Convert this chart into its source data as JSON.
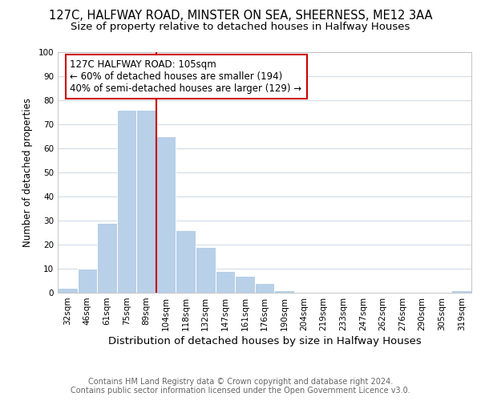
{
  "title": "127C, HALFWAY ROAD, MINSTER ON SEA, SHEERNESS, ME12 3AA",
  "subtitle": "Size of property relative to detached houses in Halfway Houses",
  "xlabel": "Distribution of detached houses by size in Halfway Houses",
  "ylabel": "Number of detached properties",
  "footnote1": "Contains HM Land Registry data © Crown copyright and database right 2024.",
  "footnote2": "Contains public sector information licensed under the Open Government Licence v3.0.",
  "bin_labels": [
    "32sqm",
    "46sqm",
    "61sqm",
    "75sqm",
    "89sqm",
    "104sqm",
    "118sqm",
    "132sqm",
    "147sqm",
    "161sqm",
    "176sqm",
    "190sqm",
    "204sqm",
    "219sqm",
    "233sqm",
    "247sqm",
    "262sqm",
    "276sqm",
    "290sqm",
    "305sqm",
    "319sqm"
  ],
  "bar_values": [
    2,
    10,
    29,
    76,
    76,
    65,
    26,
    19,
    9,
    7,
    4,
    1,
    0,
    0,
    0,
    0,
    0,
    0,
    0,
    0,
    1
  ],
  "bar_color": "#b8d0e8",
  "bar_edge_color": "#ffffff",
  "highlight_line_color": "#cc0000",
  "annotation_text": "127C HALFWAY ROAD: 105sqm\n← 60% of detached houses are smaller (194)\n40% of semi-detached houses are larger (129) →",
  "annotation_box_color": "#ffffff",
  "annotation_box_edge_color": "#cc0000",
  "ylim": [
    0,
    100
  ],
  "yticks": [
    0,
    10,
    20,
    30,
    40,
    50,
    60,
    70,
    80,
    90,
    100
  ],
  "background_color": "#ffffff",
  "grid_color": "#d0dce8",
  "title_fontsize": 10.5,
  "subtitle_fontsize": 9.5,
  "xlabel_fontsize": 9.5,
  "ylabel_fontsize": 8.5,
  "tick_fontsize": 7.5,
  "annotation_fontsize": 8.5,
  "footnote_fontsize": 7
}
